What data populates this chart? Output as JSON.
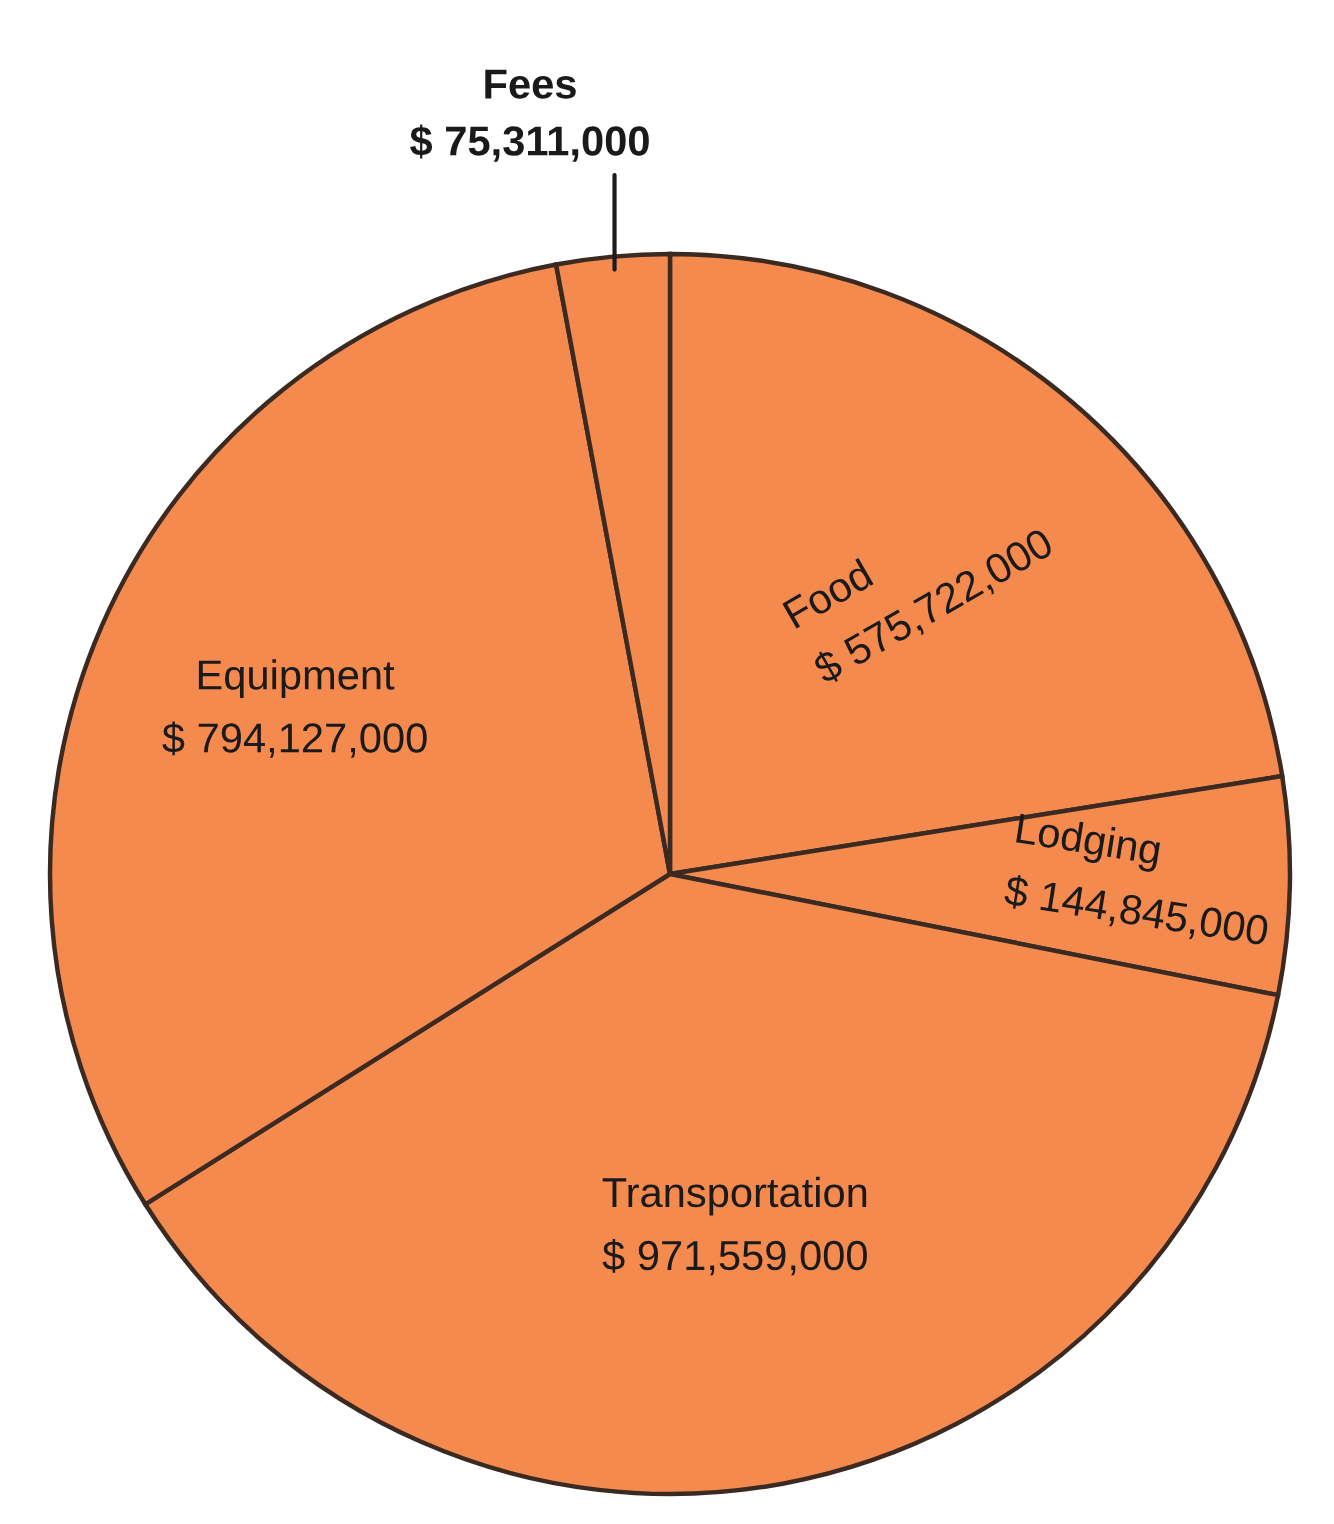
{
  "chart_data": {
    "type": "pie",
    "categories": [
      "Food",
      "Lodging",
      "Transportation",
      "Equipment",
      "Fees"
    ],
    "values": [
      575722000,
      144845000,
      971559000,
      794127000,
      75311000
    ],
    "colors": [
      "#f58a4e",
      "#f58a4e",
      "#f58a4e",
      "#f58a4e",
      "#f58a4e"
    ],
    "value_labels": [
      "$ 575,722,000",
      "$ 144,845,000",
      "$ 971,559,000",
      "$ 794,127,000",
      "$ 75,311,000"
    ]
  }
}
